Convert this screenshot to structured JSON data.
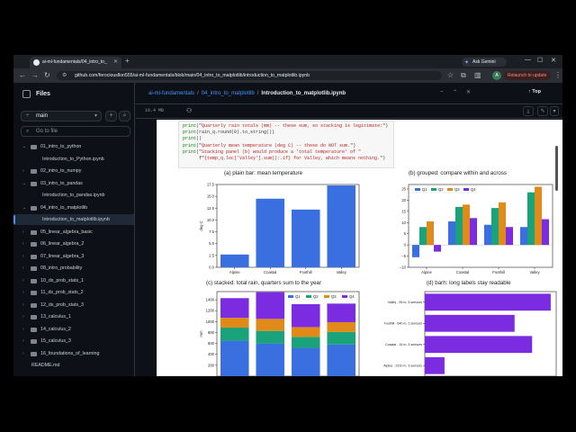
{
  "browser": {
    "tab_title": "ai-ml-fundamentals/04_intro_to_",
    "ask_gemini": "Ask Gemini",
    "url": "github.com/ferociousllon555/ai-ml-fundamentals/blob/main/04_intro_to_matplotlib/introduction_to_matplotlib.ipynb",
    "relaunch": "Relaunch to update",
    "avatar": "A"
  },
  "sidebar": {
    "title": "Files",
    "branch": "main",
    "search_placeholder": "Go to file",
    "items": [
      {
        "label": "01_intro_to_python",
        "type": "folder",
        "open": true
      },
      {
        "label": "Introduction_to_Python.ipynb",
        "type": "file"
      },
      {
        "label": "02_intro_to_numpy",
        "type": "folder",
        "open": false
      },
      {
        "label": "03_intro_to_pandas",
        "type": "folder",
        "open": true
      },
      {
        "label": "Introduction_to_pandas.ipynb",
        "type": "file"
      },
      {
        "label": "04_intro_to_matplotlib",
        "type": "folder",
        "open": true
      },
      {
        "label": "Introduction_to_matplotlib.ipynb",
        "type": "file",
        "selected": true
      },
      {
        "label": "05_linear_algebra_basic",
        "type": "folder",
        "open": false
      },
      {
        "label": "06_linear_algebra_2",
        "type": "folder",
        "open": false
      },
      {
        "label": "07_linear_algebra_3",
        "type": "folder",
        "open": false
      },
      {
        "label": "08_intro_probability",
        "type": "folder",
        "open": false
      },
      {
        "label": "10_ds_prob_stats_1",
        "type": "folder",
        "open": false
      },
      {
        "label": "11_ds_prob_stats_2",
        "type": "folder",
        "open": false
      },
      {
        "label": "12_ds_prob_stats_3",
        "type": "folder",
        "open": false
      },
      {
        "label": "13_calculus_1",
        "type": "folder",
        "open": false
      },
      {
        "label": "14_calculus_2",
        "type": "folder",
        "open": false
      },
      {
        "label": "15_calculus_3",
        "type": "folder",
        "open": false
      },
      {
        "label": "16_foundations_of_learning",
        "type": "folder",
        "open": false
      },
      {
        "label": "README.md",
        "type": "file"
      }
    ]
  },
  "main": {
    "breadcrumb": {
      "repo": "ai-ml-fundamentals",
      "folder": "04_intro_to_matplotlib",
      "file": "Introduction_to_matplotlib.ipynb"
    },
    "top_label": "Top",
    "file_size": "16.4 MB"
  },
  "notebook": {
    "code_lines": [
      [
        [
          "f",
          "print"
        ],
        [
          "t",
          "(\""
        ],
        [
          "s",
          "Quarterly rain totals (mm) -- these sum, so stacking is legitimate:"
        ],
        [
          "t",
          "\")"
        ]
      ],
      [
        [
          "f",
          "print"
        ],
        [
          "t",
          "(rain_q.round(0).to_string())"
        ]
      ],
      [
        [
          "f",
          "print"
        ],
        [
          "t",
          "()"
        ]
      ],
      [
        [
          "f",
          "print"
        ],
        [
          "t",
          "(\""
        ],
        [
          "s",
          "Quarterly mean temperature (deg C) -- these do NOT sum."
        ],
        [
          "t",
          "\")"
        ]
      ],
      [
        [
          "f",
          "print"
        ],
        [
          "t",
          "(\""
        ],
        [
          "s",
          "Stacking panel (b) would produce a 'total temperature' of \""
        ],
        [
          "t",
          ""
        ]
      ],
      [
        [
          "t",
          "      f\""
        ],
        [
          "s",
          "{temp_q.loc['Valley'].sum():.1f} for Valley, which means nothing."
        ],
        [
          "t",
          "\")"
        ]
      ]
    ]
  },
  "colors": {
    "blue": "#3a6fe0",
    "green": "#1aa37a",
    "orange": "#e08a1a",
    "purple": "#7b2be0"
  },
  "chart_data": [
    {
      "type": "bar",
      "title": "(a) plain bar: mean temperature",
      "ylabel": "deg C",
      "categories": [
        "Alpine",
        "Coastal",
        "Foothill",
        "Valley"
      ],
      "values": [
        2.7,
        14.5,
        12.2,
        17.3
      ],
      "ylim": [
        0,
        17.5
      ],
      "yticks": [
        0,
        2.5,
        5.0,
        7.5,
        10.0,
        12.5,
        15.0,
        17.5
      ],
      "ytick_labels": [
        "0.0",
        "2.5",
        "5.0",
        "7.5",
        "10.0",
        "12.5",
        "15.0",
        "17.5"
      ],
      "grid": false
    },
    {
      "type": "bar",
      "title": "(b) grouped: compare within and across",
      "categories": [
        "Alpine",
        "Coastal",
        "Foothill",
        "Valley"
      ],
      "series": [
        {
          "name": "Q1",
          "values": [
            -5.5,
            10.5,
            9.0,
            8.0
          ]
        },
        {
          "name": "Q2",
          "values": [
            8.0,
            17.0,
            16.5,
            23.5
          ]
        },
        {
          "name": "Q3",
          "values": [
            10.5,
            18.0,
            19.0,
            26.0
          ]
        },
        {
          "name": "Q4",
          "values": [
            -3.0,
            12.0,
            8.0,
            11.5
          ]
        }
      ],
      "ylim": [
        -10,
        27
      ],
      "yticks": [
        -10,
        -5,
        0,
        5,
        10,
        15,
        20,
        25
      ],
      "ytick_labels": [
        "−10",
        "−5",
        "0",
        "5",
        "10",
        "15",
        "20",
        "25"
      ],
      "legend": "top-left",
      "grid": false
    },
    {
      "type": "bar",
      "stacked": true,
      "title": "(c) stacked: total rain, quarters sum to the year",
      "ylabel": "mm",
      "categories": [
        "Alpine",
        "Coastal",
        "Foothill",
        "Valley"
      ],
      "series": [
        {
          "name": "Q1",
          "values": [
            650,
            600,
            520,
            580
          ]
        },
        {
          "name": "Q2",
          "values": [
            240,
            230,
            200,
            230
          ]
        },
        {
          "name": "Q3",
          "values": [
            180,
            220,
            180,
            180
          ]
        },
        {
          "name": "Q4",
          "values": [
            360,
            490,
            420,
            340
          ]
        }
      ],
      "ylim": [
        0,
        1550
      ],
      "yticks": [
        200,
        400,
        600,
        800,
        1000,
        1200,
        1400
      ],
      "ytick_labels": [
        "200",
        "400",
        "600",
        "800",
        "1000",
        "1200",
        "1400"
      ],
      "legend": "top-right",
      "grid": false
    },
    {
      "type": "bar",
      "orientation": "horizontal",
      "title": "(d) barh: long labels stay readable",
      "categories": [
        "Valley - 95 m, 5 sensors",
        "Foothill - 640 m, 2 sensors",
        "Coastal - 15 m, 3 sensors",
        "Alpine - 2310 m, 3 sensors"
      ],
      "values": [
        1150,
        820,
        980,
        180
      ],
      "xlim": [
        0,
        1200
      ],
      "grid": false
    }
  ]
}
